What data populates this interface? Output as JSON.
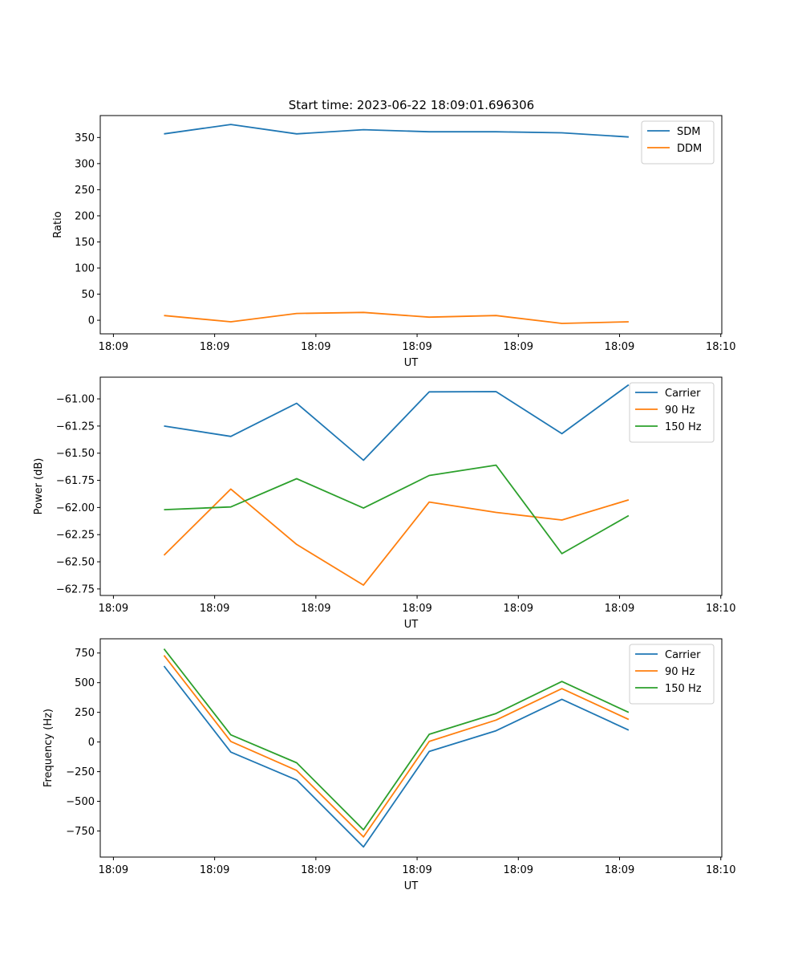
{
  "figure_title": "Start time: 2023-06-22 18:09:01.696306",
  "chart_data": [
    {
      "type": "line",
      "title": "Start time: 2023-06-22 18:09:01.696306",
      "xlabel": "UT",
      "ylabel": "Ratio",
      "x_tick_labels": [
        "18:09",
        "18:09",
        "18:09",
        "18:09",
        "18:09",
        "18:09",
        "18:10"
      ],
      "x_tick_values": [
        0,
        10,
        20,
        30,
        40,
        50,
        60
      ],
      "xlim": [
        -1.3,
        60.1
      ],
      "x": [
        5,
        11.6,
        18.1,
        24.7,
        31.2,
        37.8,
        44.3,
        50.9
      ],
      "y_ticks": [
        0,
        50,
        100,
        150,
        200,
        250,
        300,
        350
      ],
      "ylim": [
        -26,
        392
      ],
      "legend_position": "upper right",
      "grid": false,
      "series": [
        {
          "name": "SDM",
          "color": "#1f77b4",
          "values": [
            357,
            375,
            357,
            365,
            361,
            361,
            359,
            351
          ]
        },
        {
          "name": "DDM",
          "color": "#ff7f0e",
          "values": [
            9,
            -3,
            13,
            15,
            6,
            9,
            -6,
            -3
          ]
        }
      ]
    },
    {
      "type": "line",
      "title": "",
      "xlabel": "UT",
      "ylabel": "Power (dB)",
      "x_tick_labels": [
        "18:09",
        "18:09",
        "18:09",
        "18:09",
        "18:09",
        "18:09",
        "18:10"
      ],
      "x_tick_values": [
        0,
        10,
        20,
        30,
        40,
        50,
        60
      ],
      "xlim": [
        -1.3,
        60.1
      ],
      "x": [
        5,
        11.6,
        18.1,
        24.7,
        31.2,
        37.8,
        44.3,
        50.9
      ],
      "y_ticks": [
        -62.75,
        -62.5,
        -62.25,
        -62.0,
        -61.75,
        -61.5,
        -61.25,
        -61.0
      ],
      "y_tick_labels": [
        "−62.75",
        "−62.50",
        "−62.25",
        "−62.00",
        "−61.75",
        "−61.50",
        "−61.25",
        "−61.00"
      ],
      "ylim": [
        -62.81,
        -60.8
      ],
      "legend_position": "upper right",
      "grid": false,
      "series": [
        {
          "name": "Carrier",
          "color": "#1f77b4",
          "values": [
            -61.25,
            -61.345,
            -61.04,
            -61.565,
            -60.935,
            -60.933,
            -61.32,
            -60.87
          ]
        },
        {
          "name": "90 Hz",
          "color": "#ff7f0e",
          "values": [
            -62.44,
            -61.83,
            -62.34,
            -62.715,
            -61.95,
            -62.045,
            -62.115,
            -61.93
          ]
        },
        {
          "name": "150 Hz",
          "color": "#2ca02c",
          "values": [
            -62.02,
            -61.995,
            -61.735,
            -62.005,
            -61.705,
            -61.61,
            -62.425,
            -62.075
          ]
        }
      ]
    },
    {
      "type": "line",
      "title": "",
      "xlabel": "UT",
      "ylabel": "Frequency (Hz)",
      "x_tick_labels": [
        "18:09",
        "18:09",
        "18:09",
        "18:09",
        "18:09",
        "18:09",
        "18:10"
      ],
      "x_tick_values": [
        0,
        10,
        20,
        30,
        40,
        50,
        60
      ],
      "xlim": [
        -1.3,
        60.1
      ],
      "x": [
        5,
        11.6,
        18.1,
        24.7,
        31.2,
        37.8,
        44.3,
        50.9
      ],
      "y_ticks": [
        -750,
        -500,
        -250,
        0,
        250,
        500,
        750
      ],
      "y_tick_labels": [
        "−750",
        "−500",
        "−250",
        "0",
        "250",
        "500",
        "750"
      ],
      "ylim": [
        -970,
        870
      ],
      "legend_position": "upper right",
      "grid": false,
      "series": [
        {
          "name": "Carrier",
          "color": "#1f77b4",
          "values": [
            640,
            -85,
            -320,
            -885,
            -80,
            95,
            360,
            100
          ]
        },
        {
          "name": "90 Hz",
          "color": "#ff7f0e",
          "values": [
            730,
            5,
            -240,
            -800,
            5,
            185,
            450,
            190
          ]
        },
        {
          "name": "150 Hz",
          "color": "#2ca02c",
          "values": [
            785,
            60,
            -175,
            -740,
            65,
            240,
            510,
            250
          ]
        }
      ]
    }
  ]
}
